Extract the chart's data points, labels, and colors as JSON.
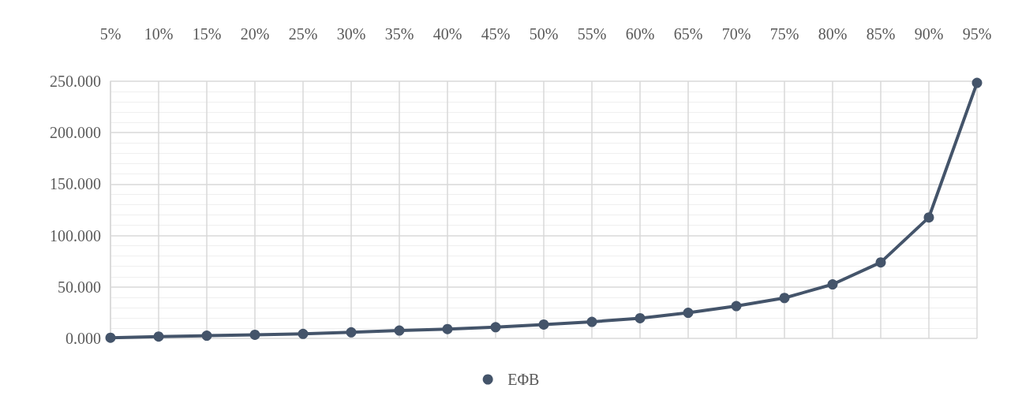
{
  "chart_data": {
    "type": "line",
    "categories": [
      "5%",
      "10%",
      "15%",
      "20%",
      "25%",
      "30%",
      "35%",
      "40%",
      "45%",
      "50%",
      "55%",
      "60%",
      "65%",
      "70%",
      "75%",
      "80%",
      "85%",
      "90%",
      "95%"
    ],
    "series": [
      {
        "name": "ΕΦΒ",
        "color": "#44546a",
        "values": [
          0.6,
          1.8,
          2.6,
          3.5,
          4.4,
          5.9,
          7.6,
          9.1,
          10.9,
          13.5,
          16.1,
          19.6,
          24.9,
          31.4,
          39.3,
          52.5,
          73.9,
          117.6,
          248.4
        ]
      }
    ],
    "ylim": [
      0,
      250
    ],
    "yticks": [
      {
        "value": 0,
        "label": "0.000"
      },
      {
        "value": 50,
        "label": "50.000"
      },
      {
        "value": 100,
        "label": "100.000"
      },
      {
        "value": 150,
        "label": "150.000"
      },
      {
        "value": 200,
        "label": "200.000"
      },
      {
        "value": 250,
        "label": "250.000"
      }
    ],
    "grid": true,
    "legend": "bottom",
    "marker": "circle",
    "line_style": "solid"
  }
}
